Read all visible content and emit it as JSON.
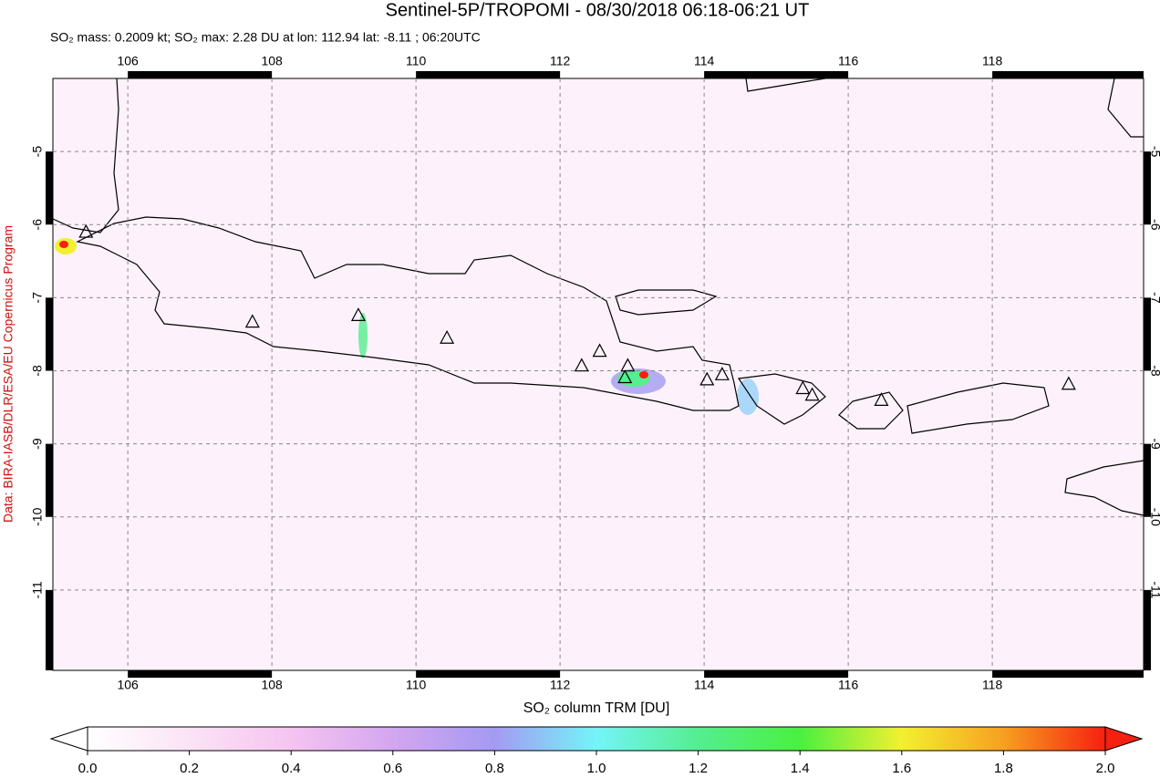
{
  "chart_data": {
    "type": "map",
    "title": "Sentinel-5P/TROPOMI - 08/30/2018 06:18-06:21 UT",
    "subtitle": "SO₂ mass: 0.2009 kt; SO₂ max: 2.28 DU at lon: 112.94 lat: -8.11 ; 06:20UTC",
    "side_note": "Data: BIRA-IASB/DLR/ESA/EU Copernicus Program",
    "xlim": [
      104.96,
      120.1
    ],
    "ylim": [
      -12.1,
      -4.0
    ],
    "xticks": [
      106,
      108,
      110,
      112,
      114,
      116,
      118
    ],
    "yticks": [
      -5,
      -6,
      -7,
      -8,
      -9,
      -10,
      -11
    ],
    "grid": true,
    "volcanoes": {
      "x": [
        105.42,
        107.73,
        109.2,
        110.43,
        112.3,
        112.55,
        112.94,
        112.9,
        114.04,
        114.25,
        115.37,
        115.5,
        116.46,
        119.06
      ],
      "y": [
        -6.11,
        -7.34,
        -7.25,
        -7.56,
        -7.94,
        -7.74,
        -7.94,
        -8.1,
        -8.13,
        -8.06,
        -8.25,
        -8.34,
        -8.41,
        -8.19
      ]
    },
    "colorbar": {
      "label": "SO₂ column TRM [DU]",
      "lim": [
        0,
        2
      ],
      "ticks": [
        {
          "value": 0,
          "label": "0.0"
        },
        0.2,
        0.4,
        0.6,
        0.8,
        {
          "value": 1,
          "label": "1.0"
        },
        1.2,
        1.4,
        1.6,
        1.8,
        {
          "value": 2,
          "label": "2.0"
        }
      ]
    }
  }
}
